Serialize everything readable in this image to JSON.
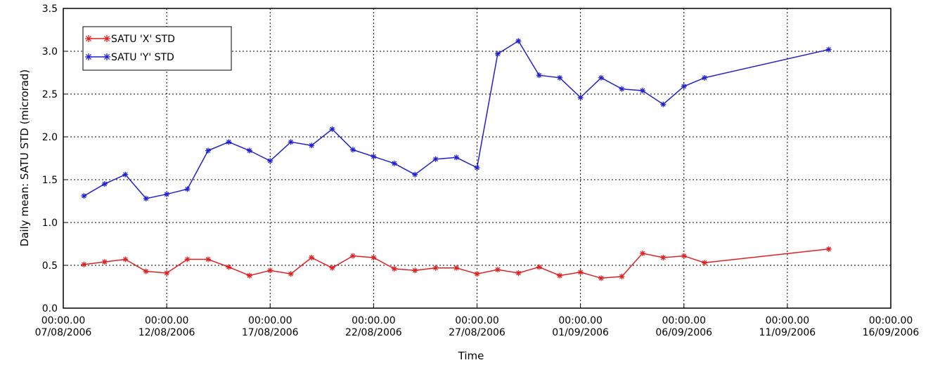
{
  "chart_data": {
    "type": "line",
    "xlabel": "Time",
    "ylabel": "Daily mean: SATU STD (microrad)",
    "ylim": [
      0,
      3.5
    ],
    "xlim": [
      "07/08/2006",
      "16/09/2006"
    ],
    "grid": true,
    "legend_position": "top-left",
    "x_ticks": [
      {
        "date": "07/08/2006",
        "time": "00:00.00",
        "day": "07/08/2006"
      },
      {
        "date": "12/08/2006",
        "time": "00:00.00",
        "day": "12/08/2006"
      },
      {
        "date": "17/08/2006",
        "time": "00:00.00",
        "day": "17/08/2006"
      },
      {
        "date": "22/08/2006",
        "time": "00:00.00",
        "day": "22/08/2006"
      },
      {
        "date": "27/08/2006",
        "time": "00:00.00",
        "day": "27/08/2006"
      },
      {
        "date": "01/09/2006",
        "time": "00:00.00",
        "day": "01/09/2006"
      },
      {
        "date": "06/09/2006",
        "time": "00:00.00",
        "day": "06/09/2006"
      },
      {
        "date": "11/09/2006",
        "time": "00:00.00",
        "day": "11/09/2006"
      },
      {
        "date": "16/09/2006",
        "time": "00:00.00",
        "day": "16/09/2006"
      }
    ],
    "y_ticks": [
      "0.0",
      "0.5",
      "1.0",
      "1.5",
      "2.0",
      "2.5",
      "3.0",
      "3.5"
    ],
    "x": [
      "08/08/2006",
      "09/08/2006",
      "10/08/2006",
      "11/08/2006",
      "12/08/2006",
      "13/08/2006",
      "14/08/2006",
      "15/08/2006",
      "16/08/2006",
      "17/08/2006",
      "18/08/2006",
      "19/08/2006",
      "20/08/2006",
      "21/08/2006",
      "22/08/2006",
      "23/08/2006",
      "24/08/2006",
      "25/08/2006",
      "26/08/2006",
      "27/08/2006",
      "28/08/2006",
      "29/08/2006",
      "30/08/2006",
      "31/08/2006",
      "01/09/2006",
      "02/09/2006",
      "03/09/2006",
      "04/09/2006",
      "05/09/2006",
      "06/09/2006",
      "07/09/2006",
      "13/09/2006"
    ],
    "series": [
      {
        "name": "SATU 'X' STD",
        "color": "#e02020",
        "values": [
          0.51,
          0.54,
          0.57,
          0.43,
          0.41,
          0.57,
          0.57,
          0.48,
          0.38,
          0.44,
          0.4,
          0.59,
          0.47,
          0.61,
          0.59,
          0.46,
          0.44,
          0.47,
          0.47,
          0.4,
          0.45,
          0.41,
          0.48,
          0.38,
          0.42,
          0.35,
          0.37,
          0.64,
          0.59,
          0.61,
          0.53,
          0.69
        ]
      },
      {
        "name": "SATU 'Y' STD",
        "color": "#2020d0",
        "values": [
          1.31,
          1.45,
          1.56,
          1.28,
          1.33,
          1.39,
          1.84,
          1.94,
          1.84,
          1.72,
          1.94,
          1.9,
          2.09,
          1.85,
          1.77,
          1.69,
          1.56,
          1.74,
          1.76,
          1.64,
          2.97,
          3.12,
          2.72,
          2.69,
          2.46,
          2.69,
          2.56,
          2.54,
          2.38,
          2.59,
          2.69,
          3.02
        ]
      }
    ]
  }
}
